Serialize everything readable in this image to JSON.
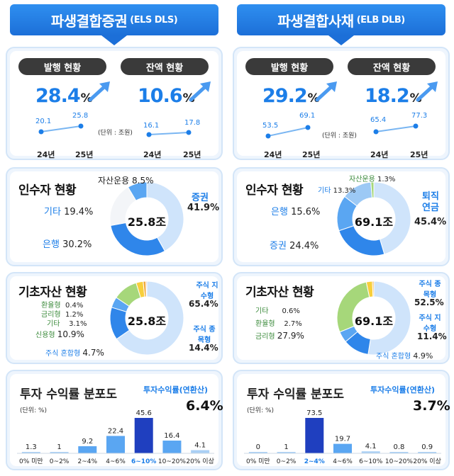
{
  "els": {
    "banner": {
      "title": "파생결합증권",
      "sub": "(ELS DLS)"
    },
    "issue": {
      "label": "발행 현황",
      "pct": "28.4",
      "pct_unit": "%",
      "v24": "20.1",
      "v25": "25.8"
    },
    "balance": {
      "label": "잔액 현황",
      "pct": "10.6",
      "pct_unit": "%",
      "v24": "16.1",
      "v25": "17.8"
    },
    "unit_label": "(단위 : 조원)",
    "year_24": "24년",
    "year_25": "25년",
    "investors": {
      "title": "인수자 현황",
      "center": "25.8조",
      "items": [
        {
          "name": "증권",
          "value": "41.9%"
        },
        {
          "name": "은행",
          "value": "30.2%"
        },
        {
          "name": "기타",
          "value": "19.4%"
        },
        {
          "name": "자산운용",
          "value": "8.5%"
        }
      ]
    },
    "underlying": {
      "title": "기초자산 현황",
      "center": "25.8조",
      "items": [
        {
          "name": "주식 지수형",
          "value": "65.4%"
        },
        {
          "name": "주식 종목형",
          "value": "14.4%"
        },
        {
          "name": "주식 혼합형",
          "value": "4.7%"
        },
        {
          "name": "신용형",
          "value": "10.9%"
        },
        {
          "name": "기타",
          "value": "3.1%"
        },
        {
          "name": "금리형",
          "value": "1.2%"
        },
        {
          "name": "환율형",
          "value": "0.4%"
        }
      ]
    },
    "distribution": {
      "title": "투자 수익률 분포도",
      "unit": "(단위: %)",
      "return_label": "투자수익률(연환산)",
      "return_value": "6.4%"
    }
  },
  "elb": {
    "banner": {
      "title": "파생결합사채",
      "sub": "(ELB DLB)"
    },
    "issue": {
      "label": "발행 현황",
      "pct": "29.2",
      "pct_unit": "%",
      "v24": "53.5",
      "v25": "69.1"
    },
    "balance": {
      "label": "잔액 현황",
      "pct": "18.2",
      "pct_unit": "%",
      "v24": "65.4",
      "v25": "77.3"
    },
    "unit_label": "(단위 : 조원)",
    "year_24": "24년",
    "year_25": "25년",
    "investors": {
      "title": "인수자 현황",
      "center": "69.1조",
      "items": [
        {
          "name": "퇴직 연금",
          "value": "45.4%"
        },
        {
          "name": "증권",
          "value": "24.4%"
        },
        {
          "name": "은행",
          "value": "15.6%"
        },
        {
          "name": "기타",
          "value": "13.3%"
        },
        {
          "name": "자산운용",
          "value": "1.3%"
        }
      ]
    },
    "underlying": {
      "title": "기초자산 현황",
      "center": "69.1조",
      "items": [
        {
          "name": "주식 종목형",
          "value": "52.5%"
        },
        {
          "name": "주식 지수형",
          "value": "11.4%"
        },
        {
          "name": "주식 혼합형",
          "value": "4.9%"
        },
        {
          "name": "금리형",
          "value": "27.9%"
        },
        {
          "name": "환율형",
          "value": "2.7%"
        },
        {
          "name": "기타",
          "value": "0.6%"
        }
      ]
    },
    "distribution": {
      "title": "투자 수익률 분포도",
      "unit": "(단위: %)",
      "return_label": "투자수익률(연환산)",
      "return_value": "3.7%"
    }
  },
  "colors": {
    "primary": "#1c7ee8",
    "dark_blue": "#1f3fbf",
    "light_blue": "#cfe4fb",
    "mid_blue": "#5aa6f2",
    "green": "#a6d77a",
    "yellow": "#f7cf3c",
    "panel": "#eef5fd"
  },
  "chart_data": [
    {
      "type": "line",
      "title": "발행 현황",
      "group": "ELS DLS",
      "x": [
        "24년",
        "25년"
      ],
      "values": [
        20.1,
        25.8
      ],
      "ylabel": "조원"
    },
    {
      "type": "line",
      "title": "잔액 현황",
      "group": "ELS DLS",
      "x": [
        "24년",
        "25년"
      ],
      "values": [
        16.1,
        17.8
      ],
      "ylabel": "조원"
    },
    {
      "type": "line",
      "title": "발행 현황",
      "group": "ELB DLB",
      "x": [
        "24년",
        "25년"
      ],
      "values": [
        53.5,
        69.1
      ],
      "ylabel": "조원"
    },
    {
      "type": "line",
      "title": "잔액 현황",
      "group": "ELB DLB",
      "x": [
        "24년",
        "25년"
      ],
      "values": [
        65.4,
        77.3
      ],
      "ylabel": "조원"
    },
    {
      "type": "pie",
      "title": "인수자 현황",
      "group": "ELS DLS",
      "categories": [
        "증권",
        "은행",
        "기타",
        "자산운용"
      ],
      "values": [
        41.9,
        30.2,
        19.4,
        8.5
      ]
    },
    {
      "type": "pie",
      "title": "인수자 현황",
      "group": "ELB DLB",
      "categories": [
        "퇴직 연금",
        "증권",
        "은행",
        "기타",
        "자산운용"
      ],
      "values": [
        45.4,
        24.4,
        15.6,
        13.3,
        1.3
      ]
    },
    {
      "type": "pie",
      "title": "기초자산 현황",
      "group": "ELS DLS",
      "categories": [
        "주식 지수형",
        "주식 종목형",
        "주식 혼합형",
        "신용형",
        "기타",
        "금리형",
        "환율형"
      ],
      "values": [
        65.4,
        14.4,
        4.7,
        10.9,
        3.1,
        1.2,
        0.4
      ]
    },
    {
      "type": "pie",
      "title": "기초자산 현황",
      "group": "ELB DLB",
      "categories": [
        "주식 종목형",
        "주식 지수형",
        "주식 혼합형",
        "금리형",
        "환율형",
        "기타"
      ],
      "values": [
        52.5,
        11.4,
        4.9,
        27.9,
        2.7,
        0.6
      ]
    },
    {
      "type": "bar",
      "title": "투자 수익률 분포도",
      "group": "ELS DLS",
      "categories": [
        "0% 미만",
        "0~2%",
        "2~4%",
        "4~6%",
        "6~10%",
        "10~20%",
        "20% 이상"
      ],
      "values": [
        1.3,
        1.0,
        9.2,
        22.4,
        45.6,
        16.4,
        4.1
      ],
      "highlight": "6~10%"
    },
    {
      "type": "bar",
      "title": "투자 수익률 분포도",
      "group": "ELB DLB",
      "categories": [
        "0% 미만",
        "0~2%",
        "2~4%",
        "4~6%",
        "6~10%",
        "10~20%",
        "20% 이상"
      ],
      "values": [
        0,
        1.0,
        73.5,
        19.7,
        4.1,
        0.8,
        0.9
      ],
      "highlight": "2~4%"
    }
  ]
}
